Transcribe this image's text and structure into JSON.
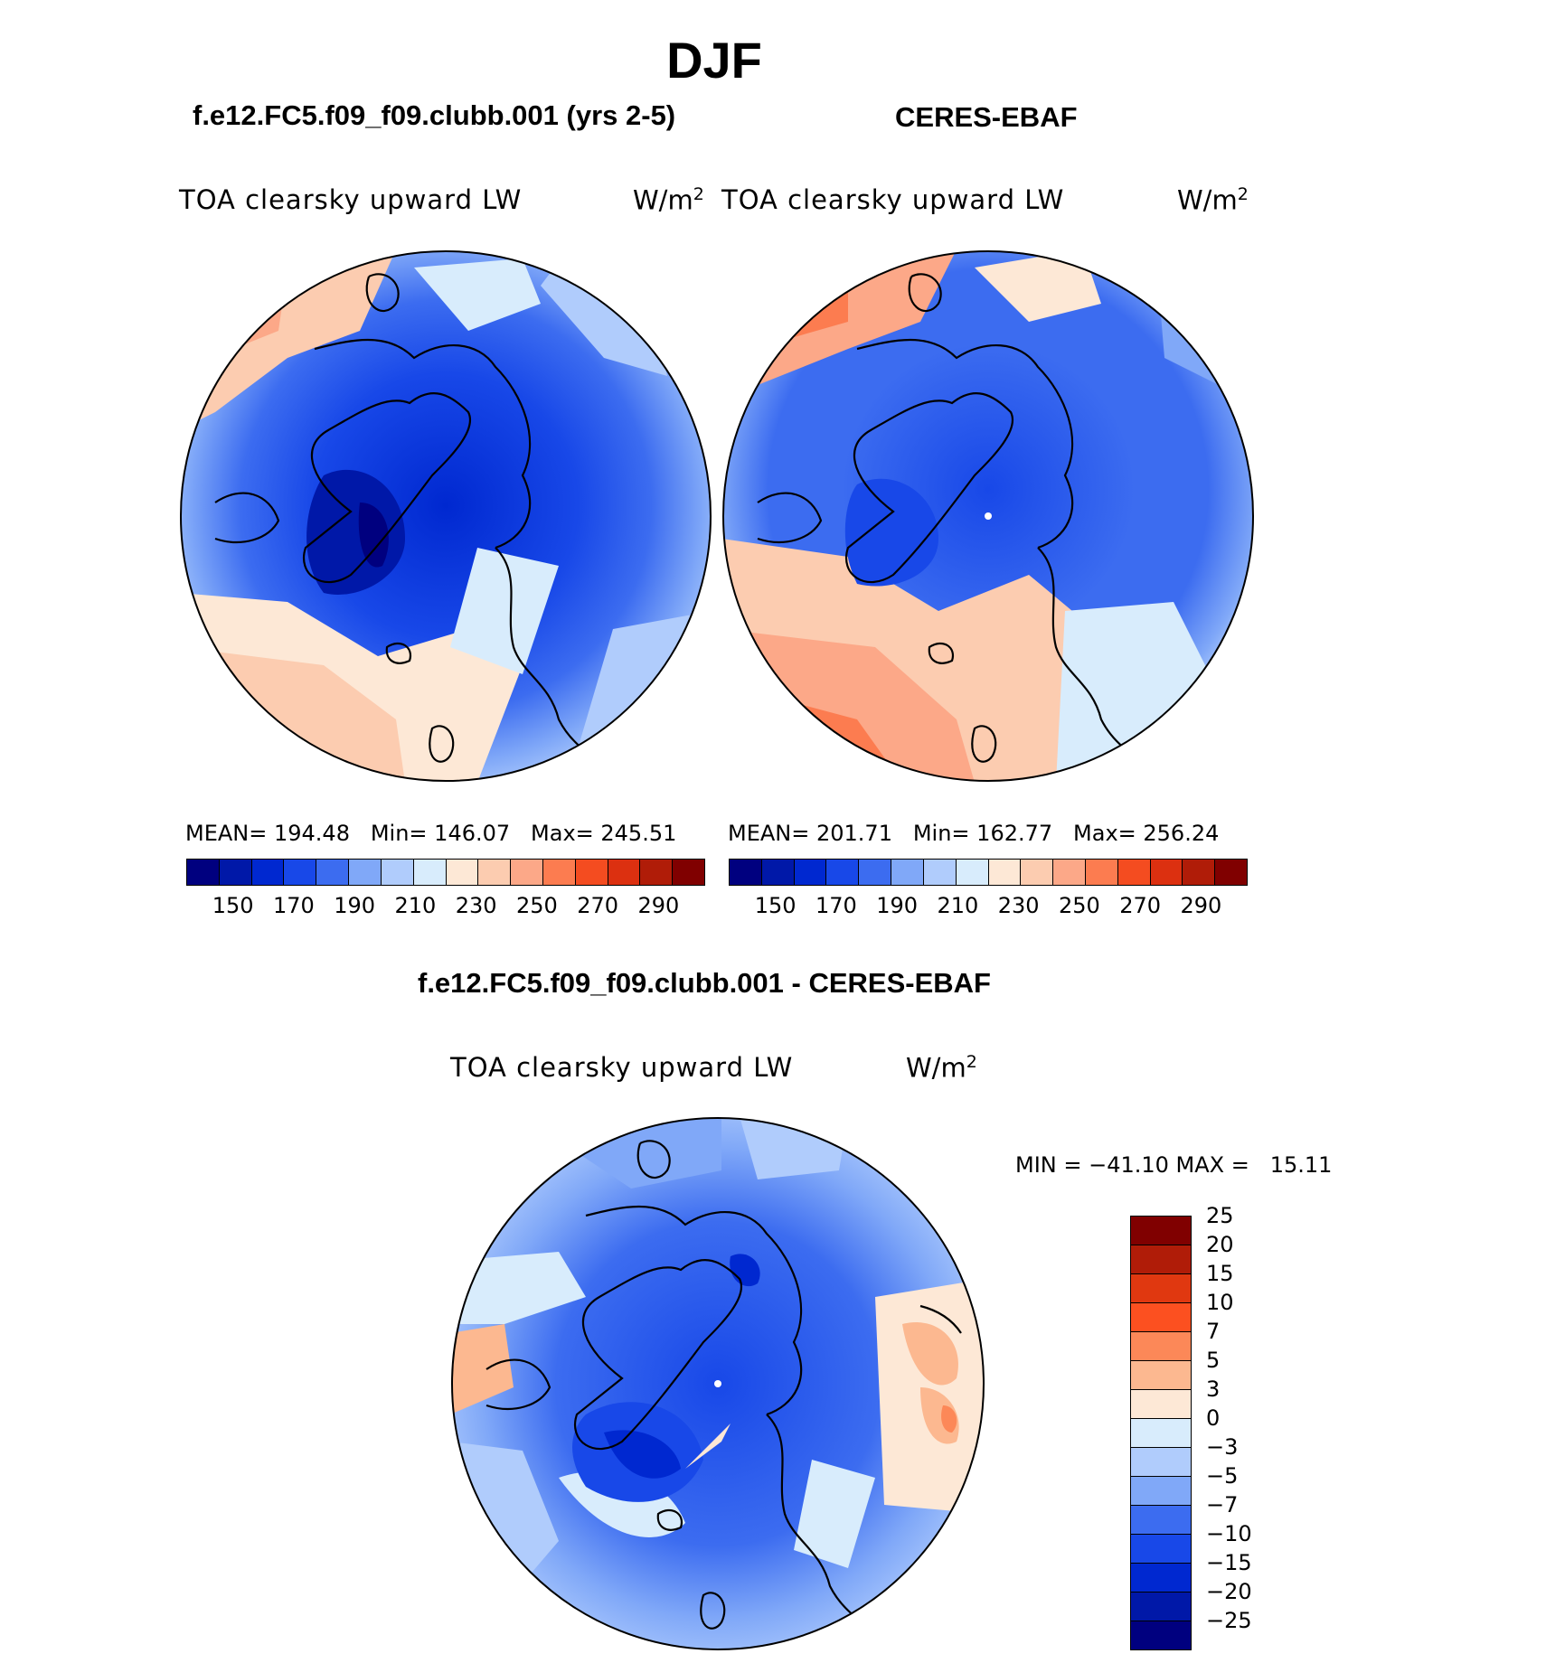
{
  "season": "DJF",
  "panels": [
    {
      "title": "f.e12.FC5.f09_f09.clubb.001 (yrs 2-5)",
      "variable": "TOA clearsky upward LW",
      "units_base": "W/m",
      "units_exp": "2",
      "stats": "MEAN= 194.48   Min= 146.07   Max= 245.51"
    },
    {
      "title": "CERES-EBAF",
      "variable": "TOA clearsky upward LW",
      "units_base": "W/m",
      "units_exp": "2",
      "stats": "MEAN= 201.71   Min= 162.77   Max= 256.24"
    }
  ],
  "diff_panel": {
    "title": "f.e12.FC5.f09_f09.clubb.001 - CERES-EBAF",
    "variable": "TOA clearsky upward LW",
    "units_base": "W/m",
    "units_exp": "2",
    "stats": "MIN = −41.10 MAX =   15.11"
  },
  "colorbar_main": {
    "colors": [
      "#00007f",
      "#0018a8",
      "#0028d0",
      "#1848e8",
      "#3c6cf0",
      "#80a8f8",
      "#b0ccfc",
      "#d8ecfc",
      "#fde8d6",
      "#fcccb0",
      "#fca888",
      "#fc7c50",
      "#f44c20",
      "#dc3010",
      "#b01c08",
      "#800000"
    ],
    "ticks": [
      "150",
      "170",
      "190",
      "210",
      "230",
      "250",
      "270",
      "290"
    ]
  },
  "colorbar_diff": {
    "colors": [
      "#00007f",
      "#0018a8",
      "#0028d0",
      "#1848e8",
      "#3c6cf0",
      "#80a8f8",
      "#b0ccfc",
      "#d8ecfc",
      "#fde8d6",
      "#fcb890",
      "#fc8858",
      "#fc5020",
      "#e03810",
      "#b01c08",
      "#800000"
    ],
    "ticks": [
      "−25",
      "−20",
      "−15",
      "−10",
      "−7",
      "−5",
      "−3",
      "0",
      "3",
      "5",
      "7",
      "10",
      "15",
      "20",
      "25"
    ]
  }
}
